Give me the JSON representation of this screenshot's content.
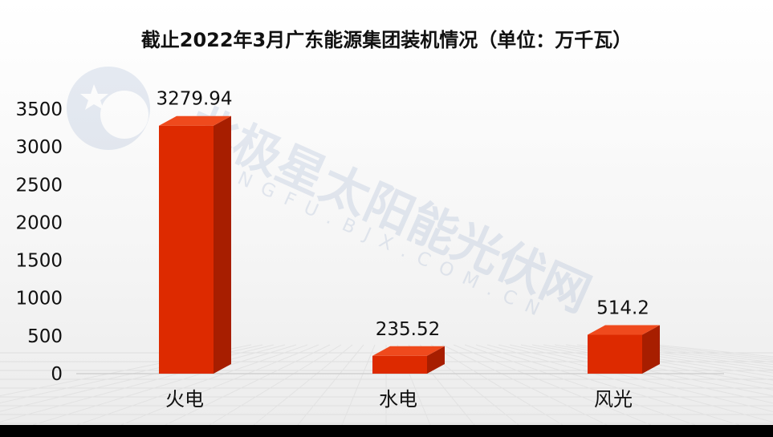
{
  "chart_data": {
    "type": "bar",
    "title": "截止2022年3月广东能源集团装机情况（单位：万千瓦）",
    "categories": [
      "火电",
      "水电",
      "风光"
    ],
    "values": [
      3279.94,
      235.52,
      514.2
    ],
    "data_labels": [
      "3279.94",
      "235.52",
      "514.2"
    ],
    "yticks": [
      0,
      500,
      1000,
      1500,
      2000,
      2500,
      3000,
      3500
    ],
    "ylim": [
      0,
      3500
    ],
    "grid": false,
    "legend": "none",
    "bar_color": "#dd2a00",
    "bar_side_color": "#a71e00",
    "bar_top_color": "#ef4a1d"
  },
  "watermark": {
    "text": "北极星太阳能光伏网",
    "subtext": "GUANGFU.BJX.COM.CN"
  },
  "colors": {
    "background": "#f2f2f2",
    "bottom_band": "#000000"
  }
}
